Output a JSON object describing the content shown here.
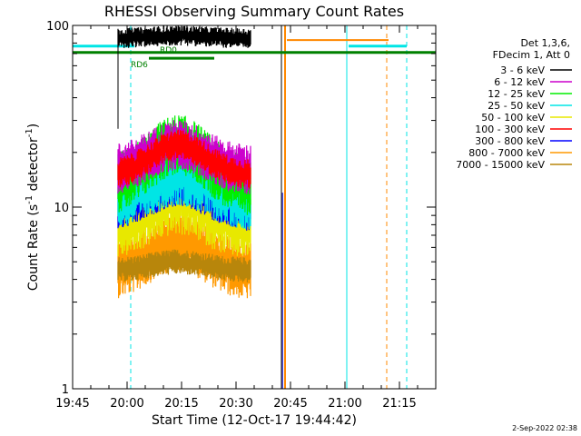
{
  "chart_data": {
    "type": "line",
    "title": "RHESSI Observing Summary Count Rates",
    "xlabel": "Start Time (12-Oct-17 19:44:42)",
    "ylabel_main": "Count Rate (s",
    "ylabel_sup": "-1",
    "ylabel_mid": " detector",
    "ylabel_end": ")",
    "y_scale": "log",
    "ylim": [
      1,
      100
    ],
    "xlim_minutes": [
      0,
      100
    ],
    "x_ticks": [
      {
        "label": "19:45",
        "t": 0
      },
      {
        "label": "20:00",
        "t": 15
      },
      {
        "label": "20:15",
        "t": 30
      },
      {
        "label": "20:30",
        "t": 45
      },
      {
        "label": "20:45",
        "t": 60
      },
      {
        "label": "21:00",
        "t": 75
      },
      {
        "label": "21:15",
        "t": 90
      }
    ],
    "y_ticks": [
      {
        "label": "1",
        "v": 1
      },
      {
        "label": "10",
        "v": 10
      },
      {
        "label": "100",
        "v": 100
      }
    ],
    "data_start_t": 12.5,
    "data_end_t": 49,
    "peak_t": 29,
    "series": [
      {
        "name": "3 - 6 keV",
        "color": "#000000",
        "base": 85,
        "peak": 88,
        "noise": 0.04
      },
      {
        "name": "6 - 12 keV",
        "color": "#cc00cc",
        "base": 16,
        "peak": 22,
        "noise": 0.1
      },
      {
        "name": "12 - 25 keV",
        "color": "#00ee00",
        "base": 13,
        "peak": 22,
        "noise": 0.12
      },
      {
        "name": "25 - 50 keV",
        "color": "#00e5e5",
        "base": 11,
        "peak": 15,
        "noise": 0.12
      },
      {
        "name": "50 - 100 keV",
        "color": "#e8e800",
        "base": 8,
        "peak": 11,
        "noise": 0.14
      },
      {
        "name": "100 - 300 keV",
        "color": "#ff0000",
        "base": 15,
        "peak": 22,
        "noise": 0.06
      },
      {
        "name": "300 - 800 keV",
        "color": "#0000ff",
        "base": 9.5,
        "peak": 13,
        "noise": 0.08
      },
      {
        "name": "800 - 7000 keV",
        "color": "#ff9900",
        "base": 4.5,
        "peak": 6.5,
        "noise": 0.12
      },
      {
        "name": "7000 - 15000 keV",
        "color": "#b8860b",
        "base": 4.5,
        "peak": 5.0,
        "noise": 0.05
      }
    ],
    "legend_header": [
      "Det 1,3,6,",
      "FDecim 1, Att 0"
    ],
    "legend_placement": "top-right",
    "annotations": {
      "rd0": {
        "label": "RD0",
        "t0": 21,
        "t1": 39,
        "value": 66
      },
      "rd6": {
        "label": "RD6",
        "t0": 0,
        "t1": 100,
        "value": 71
      },
      "cyan_bars": [
        {
          "t0": 0,
          "t1": 17,
          "value": 77
        },
        {
          "t0": 76,
          "t1": 92,
          "value": 77
        }
      ],
      "orange_bar": {
        "t0": 59,
        "t1": 87,
        "value": 83
      },
      "cyan_solid_lines": [
        0,
        75.5
      ],
      "cyan_dashed_lines": [
        16,
        92
      ],
      "orange_dashed_lines": [
        86.5
      ],
      "orange_solid_lines": [
        58.5
      ],
      "black_line": 57.5,
      "purple_line": 57.8
    },
    "footer_date": "2-Sep-2022 02:38",
    "grid": false
  }
}
